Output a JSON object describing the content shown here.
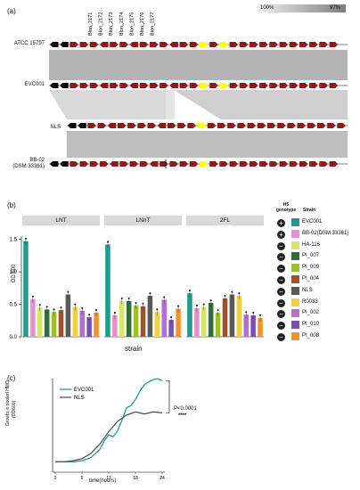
{
  "panel_a": {
    "label": "(a)",
    "scale_left": "100%",
    "scale_right": "97%",
    "gene_labels": [
      "Blon_2171",
      "Blon_2172",
      "Blon_2173",
      "Blon_2174",
      "Blon_2175",
      "Blon_2176",
      "Blon_2177"
    ],
    "tracks": [
      {
        "name": "ATCC 15797",
        "name2": ""
      },
      {
        "name": "EVC001",
        "name2": ""
      },
      {
        "name": "NLS",
        "name2": ""
      },
      {
        "name": "BB-02",
        "name2": "(DSM 33361)"
      }
    ],
    "colors": {
      "gene": "#8b1a1a",
      "special": "#000000",
      "highlight": "#ffff00",
      "identity": "#b3b3b3"
    }
  },
  "panel_b": {
    "label": "(b)",
    "ylabel": "OD 600",
    "xlabel": "strain",
    "legend_header1": "H5",
    "legend_header2": "genotype",
    "legend_header3": "Strain"
  },
  "panel_c": {
    "label": "(c)",
    "ylabel": "Growth in pooled HMO",
    "ylabel2": "(OD600)",
    "xlabel": "time(hours)",
    "pvalue": "P<0.0001",
    "stars": "****"
  },
  "chart_data": [
    {
      "type": "bar",
      "facets": [
        "LNT",
        "LNnT",
        "2FL"
      ],
      "categories": [
        "EVC001",
        "BB-02(DSM 33361)",
        "HA-116",
        "PI_007",
        "PI_009",
        "PI_004",
        "NLS",
        "R0033",
        "PI_002",
        "PI_010",
        "PI_008"
      ],
      "genotype": [
        "+",
        "+",
        "-",
        "-",
        "-",
        "-",
        "-",
        "-",
        "-",
        "-",
        "-"
      ],
      "colors": [
        "#1a9e8f",
        "#e58fd1",
        "#d5e86a",
        "#2f6d3a",
        "#9cc220",
        "#a0522d",
        "#595959",
        "#f0d142",
        "#b66fd1",
        "#7a4fb0",
        "#f29329"
      ],
      "series": [
        {
          "name": "LNT",
          "values": [
            1.47,
            0.58,
            0.45,
            0.42,
            0.38,
            0.41,
            0.65,
            0.46,
            0.4,
            0.3,
            0.37
          ]
        },
        {
          "name": "LNnT",
          "values": [
            1.42,
            0.33,
            0.55,
            0.55,
            0.48,
            0.47,
            0.63,
            0.38,
            0.57,
            0.26,
            0.43
          ]
        },
        {
          "name": "2FL",
          "values": [
            0.67,
            0.44,
            0.46,
            0.52,
            0.37,
            0.59,
            0.65,
            0.63,
            0.34,
            0.33,
            0.29
          ]
        }
      ],
      "ylim": [
        0,
        1.5
      ],
      "yticks": [
        "0.0",
        "0.5",
        "1.0",
        "1.5"
      ],
      "legend": "right"
    },
    {
      "type": "line",
      "xticks": [
        "0",
        "6",
        "12",
        "18",
        "24"
      ],
      "xlim": [
        0,
        24
      ],
      "yticks": [
        "0.0",
        "0.2",
        "0.4",
        "0.6",
        "0.8"
      ],
      "ylim": [
        0,
        0.9
      ],
      "series": [
        {
          "name": "EVC001",
          "color": "#1a9e8f",
          "x": [
            0,
            2,
            4,
            6,
            8,
            10,
            11,
            12,
            13,
            14,
            15,
            16,
            17,
            18,
            19,
            20,
            21,
            22,
            23,
            24
          ],
          "y": [
            0.1,
            0.1,
            0.1,
            0.11,
            0.14,
            0.22,
            0.3,
            0.36,
            0.34,
            0.4,
            0.5,
            0.62,
            0.64,
            0.7,
            0.78,
            0.84,
            0.87,
            0.89,
            0.9,
            0.88
          ]
        },
        {
          "name": "NLS",
          "color": "#555555",
          "x": [
            0,
            2,
            4,
            6,
            8,
            10,
            12,
            14,
            16,
            18,
            20,
            22,
            24
          ],
          "y": [
            0.1,
            0.1,
            0.11,
            0.13,
            0.18,
            0.27,
            0.39,
            0.49,
            0.55,
            0.58,
            0.56,
            0.58,
            0.57
          ]
        }
      ],
      "legend": "top-left"
    }
  ]
}
